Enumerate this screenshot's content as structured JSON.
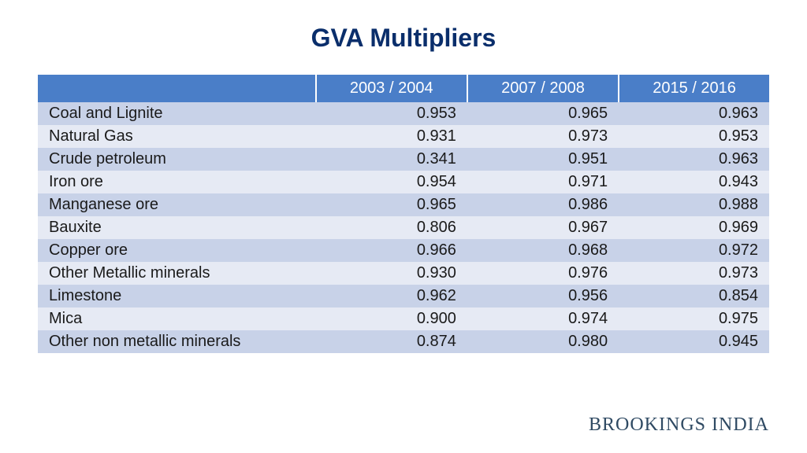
{
  "title": "GVA Multipliers",
  "footer": "BROOKINGS INDIA",
  "table": {
    "type": "table",
    "header_bg": "#4a7ec8",
    "header_text_color": "#ffffff",
    "row_odd_bg": "#c8d2e8",
    "row_even_bg": "#e6eaf4",
    "text_color": "#1a1a1a",
    "title_color": "#0a2e6b",
    "fontsize": 20,
    "title_fontsize": 32,
    "columns": [
      "",
      "2003 / 2004",
      "2007 / 2008",
      "2015 / 2016"
    ],
    "col_widths_pct": [
      38,
      20.6,
      20.6,
      20.6
    ],
    "label_align": "left",
    "value_align": "right",
    "rows": [
      [
        "Coal and Lignite",
        "0.953",
        "0.965",
        "0.963"
      ],
      [
        "Natural Gas",
        "0.931",
        "0.973",
        "0.953"
      ],
      [
        "Crude petroleum",
        "0.341",
        "0.951",
        "0.963"
      ],
      [
        "Iron ore",
        "0.954",
        "0.971",
        "0.943"
      ],
      [
        "Manganese ore",
        "0.965",
        "0.986",
        "0.988"
      ],
      [
        "Bauxite",
        "0.806",
        "0.967",
        "0.969"
      ],
      [
        "Copper ore",
        "0.966",
        "0.968",
        "0.972"
      ],
      [
        "Other Metallic minerals",
        "0.930",
        "0.976",
        "0.973"
      ],
      [
        "Limestone",
        "0.962",
        "0.956",
        "0.854"
      ],
      [
        "Mica",
        "0.900",
        "0.974",
        "0.975"
      ],
      [
        "Other non metallic minerals",
        "0.874",
        "0.980",
        "0.945"
      ]
    ]
  }
}
